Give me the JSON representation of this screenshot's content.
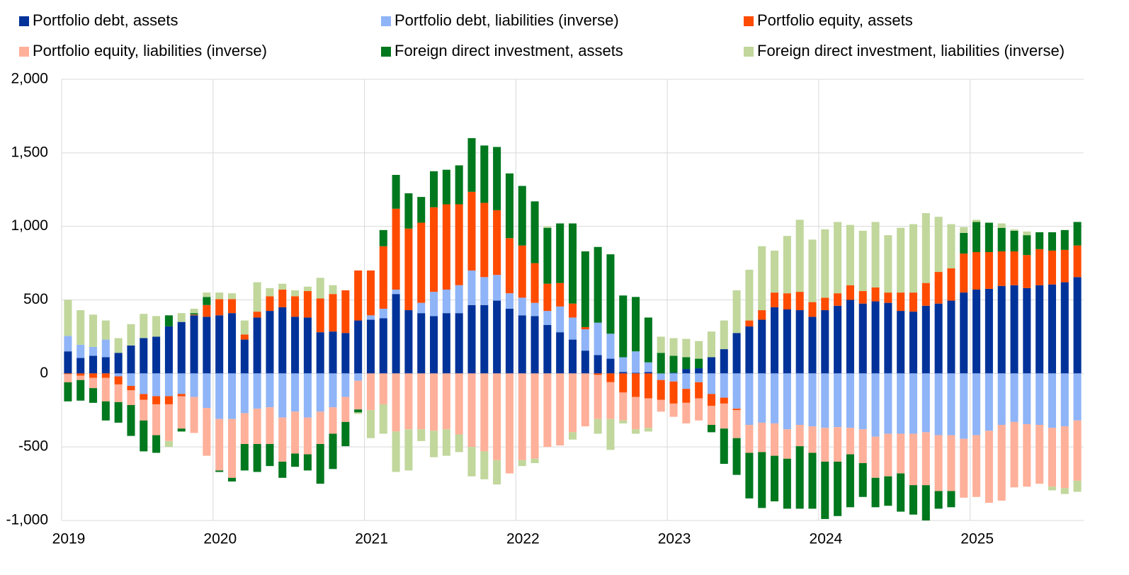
{
  "chart_data": {
    "type": "stacked_bar",
    "categories": [
      "2019",
      null,
      null,
      null,
      null,
      null,
      null,
      null,
      null,
      null,
      null,
      null,
      "2020",
      null,
      null,
      null,
      null,
      null,
      null,
      null,
      null,
      null,
      null,
      null,
      "2021",
      null,
      null,
      null,
      null,
      null,
      null,
      null,
      null,
      null,
      null,
      null,
      "2022",
      null,
      null,
      null,
      null,
      null,
      null,
      null,
      null,
      null,
      null,
      null,
      "2023",
      null,
      null,
      null,
      null,
      null,
      null,
      null,
      null,
      null,
      null,
      null,
      "2024",
      null,
      null,
      null,
      null,
      null,
      null,
      null,
      null,
      null,
      null,
      null,
      "2025",
      null,
      null,
      null,
      null,
      null,
      null,
      null,
      null
    ],
    "series": [
      {
        "name": "Portfolio debt, assets",
        "color": "#003299",
        "values": [
          150,
          105,
          120,
          110,
          140,
          190,
          240,
          250,
          320,
          350,
          395,
          385,
          395,
          410,
          230,
          380,
          425,
          450,
          385,
          380,
          280,
          285,
          275,
          360,
          365,
          375,
          540,
          430,
          410,
          390,
          410,
          410,
          465,
          465,
          495,
          440,
          395,
          390,
          330,
          280,
          230,
          155,
          125,
          100,
          10,
          5,
          10,
          0,
          5,
          30,
          35,
          110,
          165,
          275,
          320,
          365,
          450,
          435,
          430,
          385,
          430,
          460,
          500,
          475,
          490,
          480,
          425,
          420,
          460,
          475,
          495,
          550,
          570,
          575,
          595,
          600,
          580,
          600,
          605,
          620,
          655
        ]
      },
      {
        "name": "Portfolio debt, liabilities (inverse)",
        "color": "#8fb4f7",
        "values": [
          105,
          90,
          60,
          120,
          -20,
          -85,
          -140,
          -155,
          -155,
          -140,
          -160,
          -235,
          -310,
          -310,
          -270,
          -240,
          -230,
          -300,
          -260,
          -300,
          -260,
          -230,
          -160,
          -50,
          30,
          65,
          30,
          0,
          70,
          165,
          160,
          190,
          235,
          190,
          175,
          105,
          120,
          90,
          95,
          175,
          150,
          145,
          220,
          170,
          100,
          145,
          65,
          -45,
          -55,
          -105,
          -60,
          -140,
          -165,
          -240,
          -350,
          -335,
          -340,
          -380,
          -350,
          -360,
          -370,
          -365,
          -370,
          -380,
          -430,
          -410,
          -410,
          -410,
          -400,
          -420,
          -420,
          -445,
          -420,
          -390,
          -350,
          -330,
          -345,
          -350,
          -370,
          -360,
          -320
        ]
      },
      {
        "name": "Portfolio equity, assets",
        "color": "#ff4b00",
        "values": [
          -5,
          -15,
          -30,
          -30,
          -55,
          -30,
          -40,
          -55,
          -55,
          -15,
          5,
          80,
          110,
          95,
          35,
          40,
          100,
          120,
          140,
          180,
          230,
          255,
          290,
          340,
          305,
          425,
          550,
          555,
          545,
          575,
          580,
          550,
          535,
          505,
          440,
          375,
          355,
          270,
          185,
          160,
          95,
          15,
          -10,
          -60,
          -130,
          -160,
          -170,
          -135,
          -150,
          -95,
          -110,
          -80,
          -40,
          -10,
          40,
          65,
          100,
          110,
          125,
          100,
          85,
          85,
          100,
          85,
          95,
          70,
          125,
          130,
          155,
          215,
          220,
          265,
          255,
          250,
          235,
          230,
          225,
          245,
          230,
          220,
          215
        ]
      },
      {
        "name": "Portfolio equity, liabilities (inverse)",
        "color": "#ffb09a",
        "values": [
          -55,
          -30,
          -70,
          -160,
          -120,
          -100,
          -140,
          -210,
          -250,
          -220,
          -245,
          -325,
          -350,
          -400,
          -210,
          -240,
          -250,
          -300,
          -285,
          -250,
          -220,
          -180,
          -170,
          -195,
          -250,
          -210,
          -395,
          -380,
          -380,
          -390,
          -380,
          -415,
          -500,
          -530,
          -590,
          -680,
          -590,
          -580,
          -500,
          -490,
          -400,
          -360,
          -300,
          -250,
          -190,
          -220,
          -200,
          -80,
          -90,
          -140,
          -150,
          -130,
          -170,
          -190,
          -190,
          -200,
          -220,
          -200,
          -145,
          -180,
          -230,
          -235,
          -180,
          -230,
          -280,
          -290,
          -270,
          -350,
          -360,
          -380,
          -380,
          -400,
          -420,
          -490,
          -515,
          -445,
          -425,
          -400,
          -400,
          -420,
          -410
        ]
      },
      {
        "name": "Foreign direct investment, assets",
        "color": "#00781e",
        "values": [
          -130,
          -140,
          -100,
          -130,
          -140,
          -210,
          -210,
          -120,
          75,
          -20,
          10,
          55,
          -10,
          -25,
          -180,
          -190,
          -150,
          -110,
          -90,
          -110,
          -270,
          -240,
          -165,
          -20,
          0,
          110,
          230,
          240,
          175,
          245,
          235,
          265,
          365,
          390,
          430,
          440,
          405,
          420,
          380,
          405,
          545,
          515,
          515,
          540,
          420,
          370,
          305,
          140,
          115,
          80,
          65,
          -50,
          -240,
          -250,
          -310,
          -380,
          -310,
          -340,
          -425,
          -380,
          -390,
          -370,
          -360,
          -230,
          -200,
          -200,
          -260,
          -200,
          -240,
          -120,
          -110,
          140,
          205,
          200,
          160,
          140,
          135,
          115,
          125,
          135,
          160
        ]
      },
      {
        "name": "Foreign direct investment, liabilities (inverse)",
        "color": "#c1d79c",
        "values": [
          245,
          235,
          220,
          130,
          100,
          145,
          165,
          140,
          -40,
          60,
          30,
          30,
          45,
          40,
          95,
          200,
          55,
          40,
          40,
          30,
          140,
          60,
          0,
          -10,
          -190,
          -200,
          -275,
          -280,
          -80,
          -180,
          -180,
          -120,
          -200,
          -190,
          -165,
          0,
          -40,
          -30,
          10,
          0,
          -50,
          0,
          -100,
          -210,
          -20,
          -30,
          -25,
          110,
          120,
          125,
          120,
          175,
          195,
          290,
          345,
          435,
          285,
          390,
          490,
          425,
          465,
          485,
          410,
          410,
          445,
          390,
          440,
          465,
          475,
          375,
          300,
          40,
          15,
          0,
          30,
          10,
          25,
          0,
          -25,
          -40,
          -75
        ]
      }
    ],
    "ylim": [
      -1000,
      2000
    ],
    "yticks": [
      {
        "value": -1000,
        "label": "-1,000"
      },
      -500,
      0,
      500,
      {
        "value": 1000,
        "label": "1,000"
      },
      {
        "value": 1500,
        "label": "1,500"
      },
      {
        "value": 2000,
        "label": "2,000"
      }
    ],
    "grid": true,
    "legend": "top"
  }
}
